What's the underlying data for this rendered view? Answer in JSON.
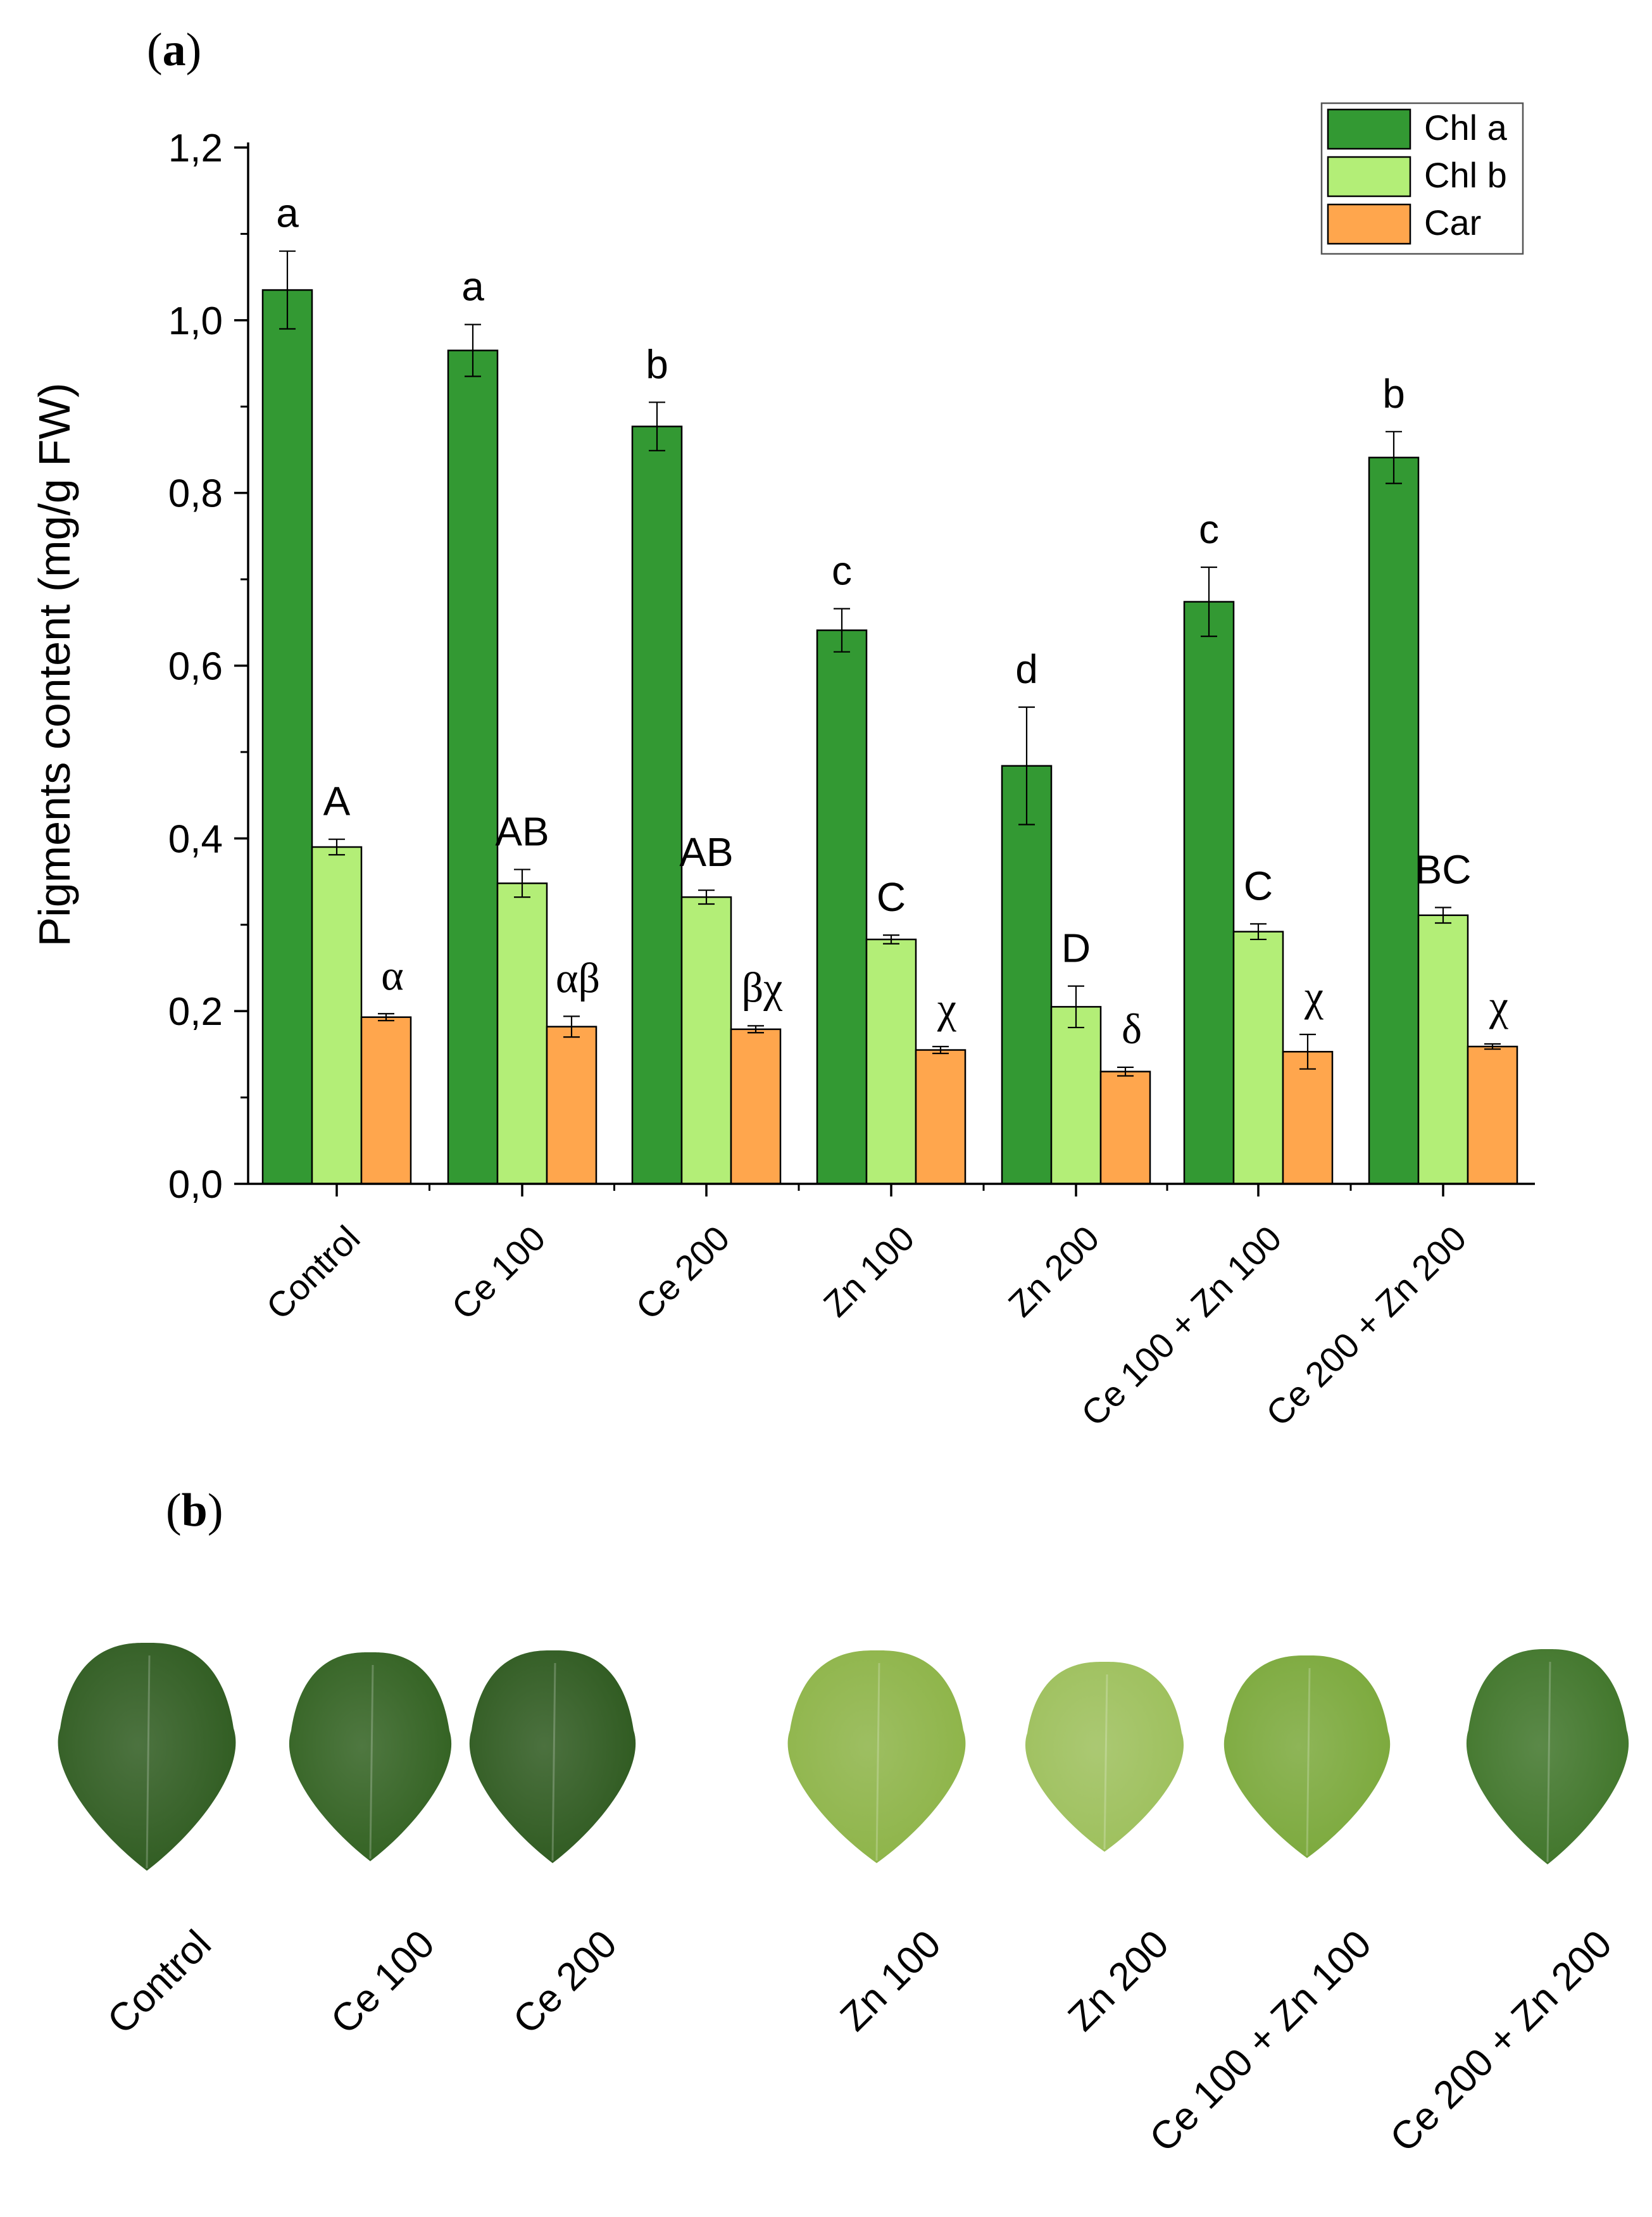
{
  "panel_a": {
    "label_open": "(",
    "label_letter": "a",
    "label_close": ")"
  },
  "panel_b": {
    "label_open": "(",
    "label_letter": "b",
    "label_close": ")",
    "leaves": [
      {
        "label": "Control",
        "color": "#2d5a1e"
      },
      {
        "label": "Ce 100",
        "color": "#30601f"
      },
      {
        "label": "Ce 200",
        "color": "#2c581d"
      },
      {
        "label": "Zn 100",
        "color": "#8cb346"
      },
      {
        "label": "Zn 200",
        "color": "#9cbf5a"
      },
      {
        "label": "Ce 100 + Zn 100",
        "color": "#7aa83a"
      },
      {
        "label": "Ce 200 + Zn 200",
        "color": "#3e7428"
      }
    ]
  },
  "chart_data": {
    "type": "bar",
    "ylabel": "Pigments content (mg/g FW)",
    "ylim": [
      0,
      1.2
    ],
    "yticks": [
      "0,0",
      "0,2",
      "0,4",
      "0,6",
      "0,8",
      "1,0",
      "1,2"
    ],
    "ytick_values": [
      0,
      0.2,
      0.4,
      0.6,
      0.8,
      1.0,
      1.2
    ],
    "categories": [
      "Control",
      "Ce 100",
      "Ce 200",
      "Zn 100",
      "Zn 200",
      "Ce 100 + Zn 100",
      "Ce 200 + Zn 200"
    ],
    "legend_position": "top-right",
    "series": [
      {
        "name": "Chl a",
        "color": "#339933",
        "values": [
          1.035,
          0.965,
          0.877,
          0.641,
          0.484,
          0.674,
          0.841
        ],
        "errors": [
          0.045,
          0.03,
          0.028,
          0.025,
          0.068,
          0.04,
          0.03
        ],
        "sig_labels": [
          "a",
          "a",
          "b",
          "c",
          "d",
          "c",
          "b"
        ]
      },
      {
        "name": "Chl b",
        "color": "#b3ee77",
        "values": [
          0.39,
          0.348,
          0.332,
          0.283,
          0.205,
          0.292,
          0.311
        ],
        "errors": [
          0.009,
          0.016,
          0.008,
          0.005,
          0.024,
          0.009,
          0.009
        ],
        "sig_labels": [
          "A",
          "AB",
          "AB",
          "C",
          "D",
          "C",
          "BC"
        ]
      },
      {
        "name": "Car",
        "color": "#ffa64d",
        "values": [
          0.193,
          0.182,
          0.179,
          0.155,
          0.13,
          0.153,
          0.159
        ],
        "errors": [
          0.004,
          0.012,
          0.004,
          0.004,
          0.005,
          0.02,
          0.003
        ],
        "sig_labels": [
          "α",
          "αβ",
          "βχ",
          "χ",
          "δ",
          "χ",
          "χ"
        ]
      }
    ]
  }
}
